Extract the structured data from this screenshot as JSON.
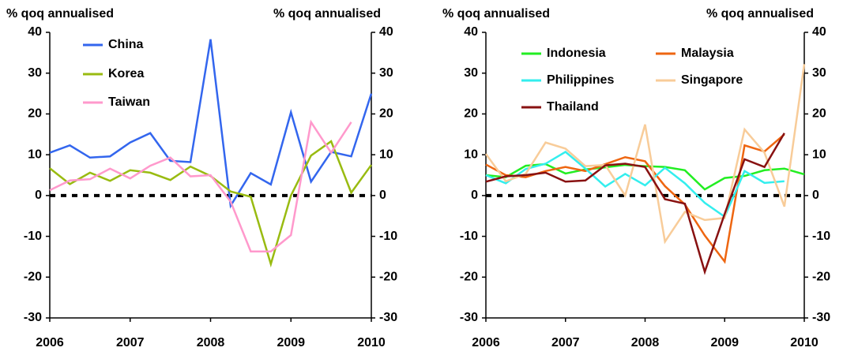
{
  "chart_data": [
    {
      "type": "line",
      "ylabel": "% qoq annualised",
      "y2label": "% qoq annualised",
      "x": [
        2006,
        2006.25,
        2006.5,
        2006.75,
        2007,
        2007.25,
        2007.5,
        2007.75,
        2008,
        2008.25,
        2008.5,
        2008.75,
        2009,
        2009.25,
        2009.5,
        2009.75,
        2010
      ],
      "xlim": [
        2006,
        2010
      ],
      "xticks": [
        2006,
        2007,
        2008,
        2009,
        2010
      ],
      "ylim": [
        -30,
        40
      ],
      "yticks": [
        -30,
        -20,
        -10,
        0,
        10,
        20,
        30,
        40
      ],
      "y2lim": [
        -30,
        40
      ],
      "y2ticks": [
        -30,
        -20,
        -10,
        0,
        10,
        20,
        30,
        40
      ],
      "series": [
        {
          "name": "China",
          "color": "#3366ee",
          "values": [
            10.5,
            12.3,
            9.3,
            9.6,
            13,
            15.3,
            8.5,
            8.2,
            38.3,
            -2.5,
            5.5,
            2.7,
            20.4,
            3.4,
            10.7,
            9.6,
            25
          ]
        },
        {
          "name": "Korea",
          "color": "#99bb11",
          "values": [
            6.7,
            2.8,
            5.6,
            3.6,
            6.2,
            5.6,
            3.8,
            7.1,
            4.8,
            1,
            -0.3,
            -16.8,
            0,
            9.8,
            13.3,
            0.7,
            7.5
          ]
        },
        {
          "name": "Taiwan",
          "color": "#ff99cc",
          "values": [
            1.3,
            3.7,
            4,
            6.6,
            4.2,
            7.3,
            9.3,
            4.7,
            5,
            -1.5,
            -13.7,
            -13.7,
            -9.7,
            18,
            10.5,
            18,
            null
          ]
        }
      ]
    },
    {
      "type": "line",
      "ylabel": "% qoq annualised",
      "y2label": "% qoq annualised",
      "x": [
        2006,
        2006.25,
        2006.5,
        2006.75,
        2007,
        2007.25,
        2007.5,
        2007.75,
        2008,
        2008.25,
        2008.5,
        2008.75,
        2009,
        2009.25,
        2009.5,
        2009.75,
        2010
      ],
      "xlim": [
        2006,
        2010
      ],
      "xticks": [
        2006,
        2007,
        2008,
        2009,
        2010
      ],
      "ylim": [
        -30,
        40
      ],
      "yticks": [
        -30,
        -20,
        -10,
        0,
        10,
        20,
        30,
        40
      ],
      "y2lim": [
        -30,
        40
      ],
      "y2ticks": [
        -30,
        -20,
        -10,
        0,
        10,
        20,
        30,
        40
      ],
      "series": [
        {
          "name": "Indonesia",
          "color": "#22ee22",
          "values": [
            5,
            4.5,
            7.3,
            7.7,
            5.4,
            6.4,
            6.9,
            7.5,
            7.2,
            7,
            6.2,
            1.5,
            4.3,
            4.8,
            6.2,
            6.6,
            5.2
          ]
        },
        {
          "name": "Malaysia",
          "color": "#ee6611",
          "values": [
            7.6,
            5,
            4.5,
            6,
            7,
            6,
            7.7,
            9.4,
            8.4,
            2.3,
            -2.2,
            -9.8,
            -16.2,
            12.3,
            10.8,
            15,
            null
          ]
        },
        {
          "name": "Philippines",
          "color": "#33eeee",
          "values": [
            5,
            3,
            6.5,
            7.8,
            10.7,
            6.6,
            2.2,
            5.3,
            2.5,
            6.8,
            3,
            -1.8,
            -5.2,
            6,
            3.1,
            3.5,
            null
          ]
        },
        {
          "name": "Singapore",
          "color": "#f8cc99",
          "values": [
            10.2,
            3.5,
            5.3,
            13,
            11.5,
            7.2,
            7.5,
            0,
            17.4,
            -11.3,
            -4,
            -6,
            -5.5,
            16.2,
            10.5,
            -2.7,
            32.2
          ]
        },
        {
          "name": "Thailand",
          "color": "#881111",
          "values": [
            3.4,
            4.7,
            5,
            5.6,
            3.4,
            3.7,
            7.4,
            7.8,
            7,
            -0.9,
            -2,
            -18.7,
            -4.5,
            8.9,
            7,
            15.3,
            null
          ]
        }
      ]
    }
  ]
}
